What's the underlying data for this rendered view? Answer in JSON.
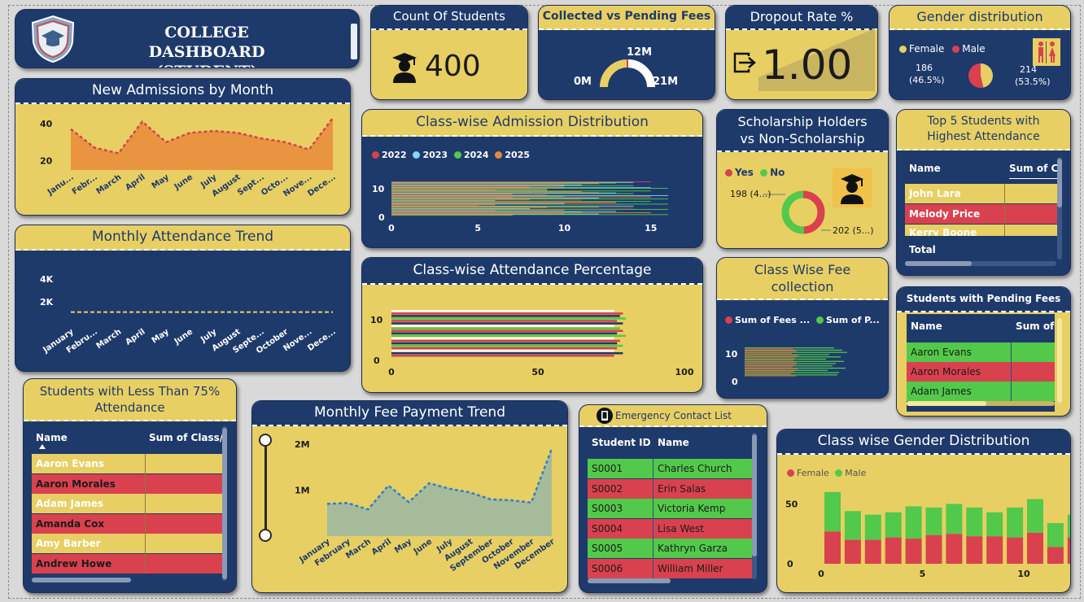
{
  "title": {
    "line1": "COLLEGE DASHBOARD",
    "line2": "(STUDENT)"
  },
  "count_students": {
    "title": "Count Of Students",
    "value": "400"
  },
  "fees": {
    "title": "Collected vs Pending Fees",
    "min": "0M",
    "top": "12M",
    "max": "21M"
  },
  "dropout": {
    "title": "Dropout Rate %",
    "value": "1.00"
  },
  "gender": {
    "title": "Gender distribution",
    "legend": [
      "Female",
      "Male"
    ],
    "female_label": "186",
    "female_pct": "(46.5%)",
    "male_label": "214",
    "male_pct": "(53.5%)"
  },
  "admissions": {
    "title": "New Admissions by Month"
  },
  "attendance_trend": {
    "title": "Monthly Attendance Trend"
  },
  "classwise_admission": {
    "title": "Class-wise Admission Distribution"
  },
  "classwise_attendance": {
    "title": "Class-wise Attendance Percentage"
  },
  "scholarship": {
    "title1": "Scholarship Holders",
    "title2": "vs Non-Scholarship",
    "legend": [
      "Yes",
      "No"
    ],
    "yes_label": "198 (4...)",
    "no_label": "202 (5...)"
  },
  "fee_collection": {
    "title1": "Class Wise Fee",
    "title2": "collection",
    "legend": [
      "Sum of Fees ...",
      "Sum of P..."
    ]
  },
  "top5": {
    "title1": "Top 5 Students with",
    "title2": "Highest Attendance",
    "col1": "Name",
    "col2": "Sum of C",
    "rows": [
      "John Lara",
      "Melody Price",
      "Kerry Boone"
    ],
    "total": "Total"
  },
  "pending": {
    "title": "Students with Pending Fees",
    "col1": "Name",
    "col2": "Sum of",
    "rows": [
      "Aaron Evans",
      "Aaron Morales",
      "Adam James"
    ]
  },
  "less75": {
    "title1": "Students with Less Than 75%",
    "title2": "Attendance",
    "col1": "Name",
    "col2": "Sum of Class/",
    "rows": [
      "Aaron Evans",
      "Aaron Morales",
      "Adam James",
      "Amanda Cox",
      "Amy Barber",
      "Andrew Howe"
    ]
  },
  "fee_trend": {
    "title": "Monthly Fee Payment Trend"
  },
  "emergency": {
    "title": "Emergency Contact List",
    "col1": "Student ID",
    "col2": "Name",
    "rows": [
      {
        "id": "S0001",
        "name": "Charles Church"
      },
      {
        "id": "S0002",
        "name": "Erin Salas"
      },
      {
        "id": "S0003",
        "name": "Victoria Kemp"
      },
      {
        "id": "S0004",
        "name": "Lisa West"
      },
      {
        "id": "S0005",
        "name": "Kathryn Garza"
      },
      {
        "id": "S0006",
        "name": "William Miller"
      }
    ]
  },
  "gender_class": {
    "title": "Class wise Gender Distribution",
    "legend": [
      "Female",
      "Male"
    ]
  },
  "colors": {
    "navy": "#1e3a6b",
    "gold": "#e8cf63",
    "red": "#d9414f",
    "green": "#52c94a",
    "orange": "#e8893a",
    "cyan": "#7fd8f0"
  },
  "chart_data": [
    {
      "id": "admissions",
      "type": "area",
      "categories": [
        "Janu...",
        "Febr...",
        "March",
        "April",
        "May",
        "June",
        "July",
        "August",
        "Sept...",
        "Octo...",
        "Nove...",
        "Dece..."
      ],
      "values": [
        37,
        27,
        24,
        41,
        30,
        35,
        36,
        35,
        32,
        30,
        26,
        43
      ],
      "yticks": [
        "20",
        "40"
      ],
      "ylim": [
        15,
        50
      ]
    },
    {
      "id": "attendance",
      "type": "line",
      "categories": [
        "January",
        "Febru...",
        "March",
        "April",
        "May",
        "June",
        "July",
        "August",
        "Septe...",
        "October",
        "Nove...",
        "Dece..."
      ],
      "values": [
        1100,
        1100,
        1100,
        1100,
        1100,
        1100,
        1100,
        1100,
        1100,
        1100,
        1100,
        1100
      ],
      "yticks": [
        "2K",
        "4K"
      ],
      "ylim": [
        0,
        5000
      ]
    },
    {
      "id": "class_admission",
      "type": "bar",
      "series": [
        {
          "name": "2022"
        },
        {
          "name": "2023"
        },
        {
          "name": "2024"
        },
        {
          "name": "2025"
        }
      ],
      "xticks": [
        "0",
        "5",
        "10",
        "15"
      ],
      "yticks": [
        "0",
        "10"
      ],
      "xlim": [
        0,
        16
      ]
    },
    {
      "id": "class_attendance",
      "type": "bar",
      "xticks": [
        "0",
        "50",
        "100"
      ],
      "yticks": [
        "0",
        "10"
      ],
      "xlim": [
        0,
        100
      ]
    },
    {
      "id": "scholarship",
      "type": "pie",
      "values": [
        {
          "name": "Yes",
          "value": 198
        },
        {
          "name": "No",
          "value": 202
        }
      ]
    },
    {
      "id": "gender",
      "type": "pie",
      "values": [
        {
          "name": "Female",
          "value": 186
        },
        {
          "name": "Male",
          "value": 214
        }
      ]
    },
    {
      "id": "fee_collection",
      "type": "bar",
      "series": [
        {
          "name": "Sum of Fees ..."
        },
        {
          "name": "Sum of P..."
        }
      ],
      "yticks": [
        "0",
        "10"
      ]
    },
    {
      "id": "fee_trend",
      "type": "area",
      "categories": [
        "January",
        "February",
        "March",
        "April",
        "May",
        "June",
        "July",
        "August",
        "September",
        "October",
        "November",
        "December"
      ],
      "values": [
        700000,
        720000,
        580000,
        1100000,
        740000,
        1150000,
        1030000,
        950000,
        800000,
        780000,
        730000,
        1900000
      ],
      "yticks": [
        "1M",
        "2M"
      ],
      "ylim": [
        0,
        2300000
      ]
    },
    {
      "id": "gender_class",
      "type": "bar",
      "categories": [
        "0",
        "1",
        "2",
        "3",
        "4",
        "5",
        "6",
        "7",
        "8",
        "9",
        "10",
        "11",
        "12"
      ],
      "series": [
        {
          "name": "Female",
          "values": [
            27,
            20,
            20,
            22,
            21,
            24,
            25,
            23,
            23,
            22,
            26,
            14,
            22
          ]
        },
        {
          "name": "Male",
          "values": [
            33,
            24,
            21,
            21,
            27,
            23,
            25,
            24,
            20,
            25,
            28,
            20,
            19
          ]
        }
      ],
      "xticks": [
        "0",
        "5",
        "10"
      ],
      "yticks": [
        "0",
        "50"
      ],
      "ylim": [
        0,
        70
      ]
    }
  ]
}
